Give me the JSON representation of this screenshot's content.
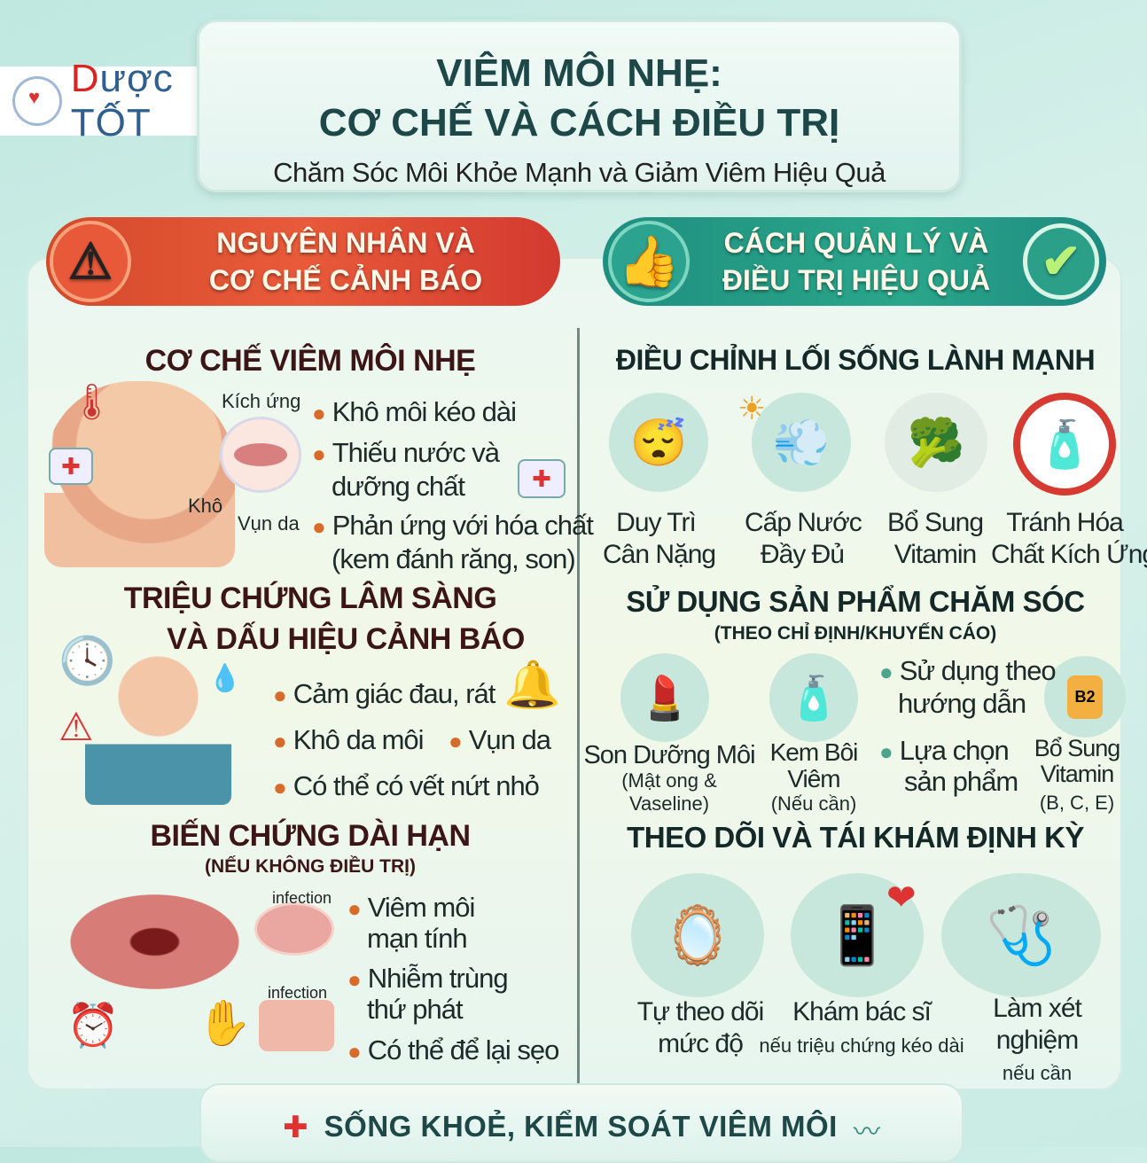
{
  "logo": {
    "text_d": "D",
    "text_rest": "ược ",
    "text_tot": "TỐT"
  },
  "header": {
    "title_line1": "VIÊM MÔI NHẸ:",
    "title_line2": "CƠ CHẾ VÀ CÁCH ĐIỀU TRỊ",
    "subtitle": "Chăm Sóc Môi Khỏe Mạnh và Giảm Viêm Hiệu Quả"
  },
  "banners": {
    "left": {
      "line1": "NGUYÊN NHÂN VÀ",
      "line2": "CƠ CHẾ CẢNH BÁO",
      "icon": "warning-icon"
    },
    "right": {
      "line1": "CÁCH QUẢN LÝ VÀ",
      "line2": "ĐIỀU TRỊ HIỆU QUẢ",
      "icon": "thumbs-up-icon",
      "icon2": "check-icon"
    }
  },
  "left": {
    "mechanism": {
      "heading": "CƠ CHẾ VIÊM MÔI NHẸ",
      "labels": {
        "irritation": "Kích ứng",
        "dry": "Khô",
        "flaking": "Vụn da"
      },
      "bullets": [
        "Khô môi kéo dài",
        "Thiếu nước và",
        "dưỡng chất",
        "Phản ứng với hóa chất",
        "(kem đánh răng, son)"
      ]
    },
    "symptoms": {
      "heading1": "TRIỆU CHỨNG LÂM SÀNG",
      "heading2": "VÀ DẤU HIỆU CẢNH BÁO",
      "bullets": [
        "Cảm giác đau, rát",
        "Khô da môi",
        "Vụn da",
        "Có thể có vết nứt nhỏ"
      ]
    },
    "complications": {
      "heading": "BIẾN CHỨNG DÀI HẠN",
      "subheading": "(NẾU KHÔNG ĐIỀU TRỊ)",
      "infection_label": "infection",
      "bullets": [
        "Viêm môi",
        "mạn tính",
        "Nhiễm trùng",
        "thứ phát",
        "Có thể để lại sẹo"
      ]
    }
  },
  "right": {
    "lifestyle": {
      "heading": "ĐIỀU CHỈNH LỐI SỐNG LÀNH MẠNH",
      "items": [
        {
          "line1": "Duy Trì",
          "line2": "Cân Nặng",
          "icon": "sleep-icon"
        },
        {
          "line1": "Cấp Nước",
          "line2": "Đầy Đủ",
          "icon": "humidifier-icon"
        },
        {
          "line1": "Bổ Sung",
          "line2": "Vitamin",
          "icon": "vegetables-icon"
        },
        {
          "line1": "Tránh Hóa",
          "line2": "Chất Kích Ứng",
          "icon": "no-chemicals-icon"
        }
      ]
    },
    "products": {
      "heading": "SỬ DỤNG SẢN PHẨM CHĂM SÓC",
      "subheading": "(THEO CHỈ ĐỊNH/KHUYẾN CÁO)",
      "lip_balm": {
        "line1": "Son Dưỡng Môi",
        "line2": "(Mật ong &",
        "line3": "Vaseline)"
      },
      "cream": {
        "line1": "Kem Bôi",
        "line2": "Viêm",
        "line3": "(Nếu cần)"
      },
      "bullets": [
        "Sử dụng theo",
        "hướng dẫn",
        "Lựa chọn",
        "sản phẩm"
      ],
      "vitamin": {
        "line1": "Bổ Sung",
        "line2": "Vitamin",
        "line3": "(B, C, E)",
        "bottle_label": "B2"
      }
    },
    "monitoring": {
      "heading": "THEO DÕI VÀ TÁI KHÁM ĐỊNH KỲ",
      "items": [
        {
          "line1": "Tự theo dõi",
          "line2": "mức độ"
        },
        {
          "line1": "Khám bác sĩ",
          "line2": "nếu triệu chứng kéo dài"
        },
        {
          "line1": "Làm xét",
          "line2": "nghiệm",
          "line3": "nếu cần"
        }
      ]
    }
  },
  "footer": {
    "text": "SỐNG KHOẺ, KIỂM SOÁT VIÊM MÔI"
  },
  "colors": {
    "left_banner": "#e05236",
    "right_banner": "#25a08a",
    "title": "#1e4848",
    "background": "#cdeee6"
  }
}
